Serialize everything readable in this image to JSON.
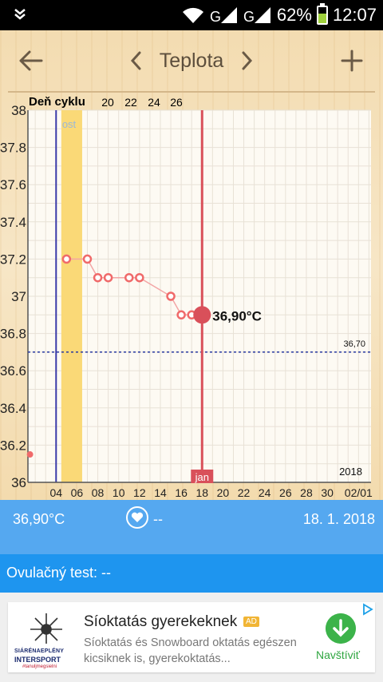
{
  "status_bar": {
    "battery": "62%",
    "time": "12:07",
    "battery_level": 0.62
  },
  "toolbar": {
    "title": "Teplota"
  },
  "chart_data": {
    "type": "line",
    "header_label": "Deň cyklu",
    "cycle_day_ticks": [
      "20",
      "22",
      "24",
      "26"
    ],
    "fertile_label": "ost",
    "y_ticks": [
      "38",
      "37.8",
      "37.6",
      "37.4",
      "37.2",
      "37",
      "36.8",
      "36.6",
      "36.4",
      "36.2",
      "36"
    ],
    "ylim": [
      36,
      38
    ],
    "x_ticks": [
      "04",
      "06",
      "08",
      "10",
      "12",
      "14",
      "16",
      "18",
      "20",
      "22",
      "24",
      "26",
      "28",
      "30",
      "02/01"
    ],
    "x_values": [
      4,
      6,
      8,
      10,
      12,
      14,
      16,
      18,
      20,
      22,
      24,
      26,
      28,
      30,
      33
    ],
    "xlim": [
      1.3,
      34.2
    ],
    "series": [
      {
        "x": [
          5,
          7,
          8,
          9,
          11,
          12,
          15,
          16,
          17,
          18
        ],
        "y": [
          37.2,
          37.2,
          37.1,
          37.1,
          37.1,
          37.1,
          37.0,
          36.9,
          36.9,
          36.9
        ]
      }
    ],
    "stray_point": {
      "x": 1.5,
      "y": 36.15
    },
    "baseline_value": 36.7,
    "baseline_label": "36,70",
    "selected_x": 18,
    "selected_y": 36.9,
    "selected_label": "36,90°C",
    "month_marker": "jan",
    "year_label": "2018",
    "fertile_window": [
      5,
      6
    ],
    "period_start_x": 4,
    "colors": {
      "series": "#f06a6a",
      "selected": "#d9505a",
      "baseline": "#2a3aa0",
      "fertile": "#fad977",
      "period_line": "#3a3aa8",
      "grid": "#e8e1d6"
    }
  },
  "info_bar": {
    "temperature": "36,90°C",
    "heart_icon": "heart-icon",
    "mood": "--",
    "date": "18. 1. 2018"
  },
  "ovulation": {
    "label": "Ovulačný test:  --"
  },
  "ad": {
    "headline": "Síoktatás gyerekeknek",
    "tag": "AD",
    "description": "Síoktatás és Snowboard oktatás egészen kicsiknek is, gyerekoktatás...",
    "cta": "Navštíviť",
    "brand_line1": "SIÁRÉNAEPLÉNY",
    "brand_line2": "INTERSPORT",
    "brand_line3": "#tanuljmegsielni"
  }
}
